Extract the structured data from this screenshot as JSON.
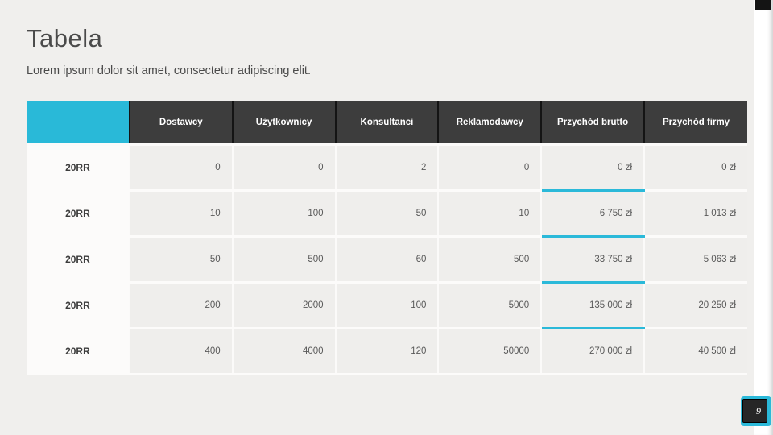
{
  "slide": {
    "title": "Tabela",
    "subtitle": "Lorem ipsum dolor sit amet, consectetur adipiscing elit.",
    "page_number": "9"
  },
  "table": {
    "header": [
      "",
      "Dostawcy",
      "Użytkownicy",
      "Konsultanci",
      "Reklamodawcy",
      "Przychód brutto",
      "Przychód firmy"
    ],
    "highlighted_column": "Przychód brutto",
    "rows": [
      {
        "label": "20RR",
        "values": [
          "0",
          "0",
          "2",
          "0",
          "0 zł",
          "0 zł"
        ],
        "highlight_underline": true
      },
      {
        "label": "20RR",
        "values": [
          "10",
          "100",
          "50",
          "10",
          "6 750 zł",
          "1 013 zł"
        ],
        "highlight_underline": true
      },
      {
        "label": "20RR",
        "values": [
          "50",
          "500",
          "60",
          "500",
          "33 750 zł",
          "5 063 zł"
        ],
        "highlight_underline": true
      },
      {
        "label": "20RR",
        "values": [
          "200",
          "2000",
          "100",
          "5000",
          "135 000 zł",
          "20 250 zł"
        ],
        "highlight_underline": true
      },
      {
        "label": "20RR",
        "values": [
          "400",
          "4000",
          "120",
          "50000",
          "270 000 zł",
          "40 500 zł"
        ],
        "highlight_underline": false
      }
    ]
  },
  "colors": {
    "accent_cyan": "#29b9d8",
    "header_dark": "#3d3d3d",
    "badge_dark": "#262626",
    "slide_bg": "#f0efed"
  }
}
